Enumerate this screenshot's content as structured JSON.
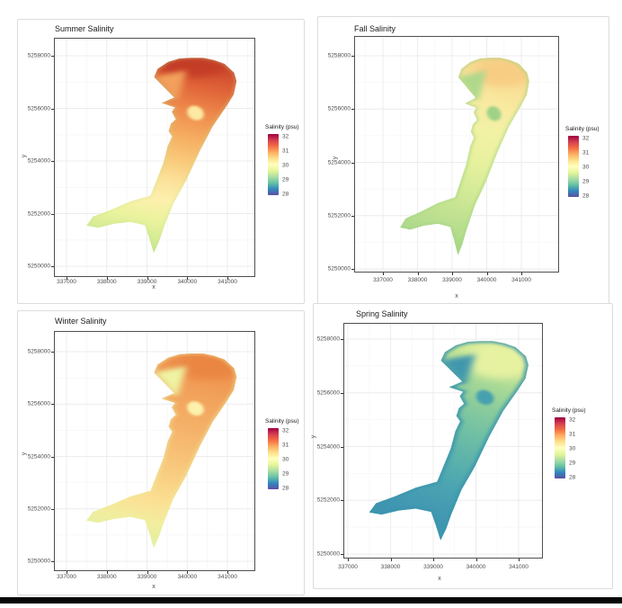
{
  "page": {
    "background": "#ffffff",
    "bottom_bar_color": "#070707"
  },
  "axes": {
    "x_label": "x",
    "y_label": "y",
    "x_tick_labels": [
      "337000",
      "338000",
      "339000",
      "340000",
      "341000"
    ],
    "y_tick_labels": [
      "5258000",
      "5256000",
      "5254000",
      "5252000",
      "5250000"
    ]
  },
  "legend": {
    "title": "Salinity (psu)",
    "tick_labels": [
      "32",
      "31",
      "30",
      "29",
      "28"
    ],
    "colorbar_top_to_bottom": [
      "#9E0142",
      "#D53E4F",
      "#F46D43",
      "#FDAE61",
      "#FEE08B",
      "#FFFFBF",
      "#E6F598",
      "#ABDDA4",
      "#66C2A5",
      "#3288BD",
      "#5E4FA2"
    ]
  },
  "panels": [
    {
      "id": "summer",
      "title": "Summer Salinity",
      "colors": {
        "ramp": [
          [
            "0",
            "#c0452c"
          ],
          [
            "0.08",
            "#cf4c2e"
          ],
          [
            "0.18",
            "#e06438"
          ],
          [
            "0.3",
            "#ee8a4c"
          ],
          [
            "0.42",
            "#f5ab60"
          ],
          [
            "0.54",
            "#f9c878"
          ],
          [
            "0.65",
            "#fce29a"
          ],
          [
            "0.75",
            "#fdf0ad"
          ],
          [
            "0.85",
            "#ebf39e"
          ],
          [
            "1",
            "#c9e68f"
          ]
        ],
        "island": "#fce9a2",
        "wedge": "#f2a05c",
        "blob": "#c43d27",
        "edge": "#bfe38c",
        "edge_opacity": "0.35"
      }
    },
    {
      "id": "fall",
      "title": "Fall Salinity",
      "colors": {
        "ramp": [
          [
            "0",
            "#f6cd85"
          ],
          [
            "0.12",
            "#f9dd93"
          ],
          [
            "0.25",
            "#f8eaa0"
          ],
          [
            "0.4",
            "#f2f2a4"
          ],
          [
            "0.55",
            "#e7f19e"
          ],
          [
            "0.7",
            "#d5eb97"
          ],
          [
            "0.85",
            "#c0e190"
          ],
          [
            "1",
            "#a9d88a"
          ]
        ],
        "island": "#9fd287",
        "wedge": "#aed88b",
        "blob": "#f7cd83",
        "edge": "#a5d687",
        "edge_opacity": "0.7"
      }
    },
    {
      "id": "winter",
      "title": "Winter Salinity",
      "colors": {
        "ramp": [
          [
            "0",
            "#eb8746"
          ],
          [
            "0.12",
            "#ef9551"
          ],
          [
            "0.25",
            "#f2a35c"
          ],
          [
            "0.4",
            "#f5b169"
          ],
          [
            "0.55",
            "#f7c176"
          ],
          [
            "0.68",
            "#f9d285"
          ],
          [
            "0.8",
            "#fbe195"
          ],
          [
            "0.9",
            "#f2ed9f"
          ],
          [
            "1",
            "#e2efa0"
          ]
        ],
        "island": "#fdf2ab",
        "wedge": "#eef3a3",
        "blob": "#ea8643",
        "edge": "#e9f2a1",
        "edge_opacity": "0.5"
      }
    },
    {
      "id": "spring",
      "title": "Spring Salinity",
      "colors": {
        "ramp": [
          [
            "0",
            "#e4f19d"
          ],
          [
            "0.1",
            "#cfe897"
          ],
          [
            "0.22",
            "#abda96"
          ],
          [
            "0.35",
            "#8bcc9c"
          ],
          [
            "0.5",
            "#70c0a4"
          ],
          [
            "0.65",
            "#5cb2ab"
          ],
          [
            "0.8",
            "#4ba4b1"
          ],
          [
            "1",
            "#4095b2"
          ]
        ],
        "island": "#47a0ae",
        "wedge": "#3f97ad",
        "blob": "#e6f2a0",
        "edge": "#3a96ad",
        "edge_opacity": "0.9"
      }
    }
  ],
  "chart_data": {
    "type": "heatmap",
    "layout": "2x2 grid of seasonal spatial salinity maps of the same estuary/lagoon",
    "x": {
      "label": "x",
      "ticks": [
        337000,
        338000,
        339000,
        340000,
        341000
      ],
      "range": [
        336700,
        341700
      ]
    },
    "y": {
      "label": "y",
      "ticks": [
        5250000,
        5252000,
        5254000,
        5256000,
        5258000
      ],
      "range": [
        5249500,
        5258700
      ]
    },
    "colorbar": {
      "title": "Salinity (psu)",
      "ticks": [
        32,
        31,
        30,
        29,
        28
      ],
      "range": [
        28,
        32
      ],
      "palette": "Spectral reversed (dark red = 32 high, blue-purple = 28 low)"
    },
    "panels": [
      {
        "title": "Summer Salinity",
        "approx_range_psu": [
          29.6,
          31.7
        ],
        "pattern": "highest salinity (~31.5 psu, dark orange-red) in the northern basin near (340200, 5257500), decreasing south-westward through the channel (~30.3 pale yellow near y=5254000) to ~29.7 psu (yellow-green) on the western arm and southern tip"
      },
      {
        "title": "Fall Salinity",
        "approx_range_psu": [
          29.3,
          30.5
        ],
        "pattern": "nearly uniform pale yellow-green ~30 psu; slightly higher (~30.4, pale orange) in the north-east basin, greener (~29.4) along the western arm, north-west wedge and shorelines"
      },
      {
        "title": "Winter Salinity",
        "approx_range_psu": [
          29.8,
          31.1
        ],
        "pattern": "orange ~30.7-31 psu over most of the basin and channel, highest toward the north-east; pale yellow-green (~30) on the western arm, north-west wedge and southern spike"
      },
      {
        "title": "Spring Salinity",
        "approx_range_psu": [
          28.3,
          30.1
        ],
        "pattern": "freshest season: teal-blue ~28.5 psu along the western arm, north-west wedge, shorelines and south; green ~29 in mid-channel; highest (~30, pale yellow-green) in the north-east basin"
      },
      {
        "note": "every season shows a small lower-salinity patch (island/shoal) near (340200, 5255900)"
      }
    ]
  }
}
